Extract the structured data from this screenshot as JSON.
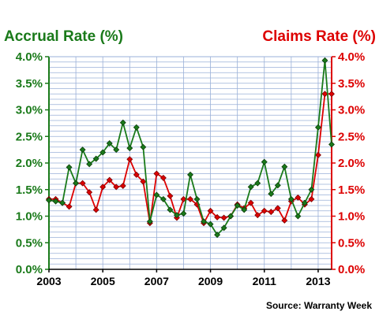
{
  "chart_data": {
    "type": "line",
    "title_left": "Accrual Rate (%)",
    "title_right": "Claims Rate (%)",
    "source": "Source: Warranty Week",
    "colors": {
      "accrual": "#1a7a1a",
      "claims": "#dd0000"
    },
    "y_range": [
      0,
      4.0
    ],
    "y_ticks": [
      0,
      0.5,
      1.0,
      1.5,
      2.0,
      2.5,
      3.0,
      3.5,
      4.0
    ],
    "y_tick_labels": [
      "0.0%",
      "0.5%",
      "1.0%",
      "1.5%",
      "2.0%",
      "2.5%",
      "3.0%",
      "3.5%",
      "4.0%"
    ],
    "x_range": [
      2003,
      2013.5
    ],
    "x_ticks": [
      2003,
      2005,
      2007,
      2009,
      2011,
      2013
    ],
    "x_tick_labels": [
      "2003",
      "2005",
      "2007",
      "2009",
      "2011",
      "2013"
    ],
    "grid": true,
    "series": [
      {
        "name": "Accrual Rate (%)",
        "axis": "left",
        "x": [
          2003.0,
          2003.25,
          2003.5,
          2003.75,
          2004.0,
          2004.25,
          2004.5,
          2004.75,
          2005.0,
          2005.25,
          2005.5,
          2005.75,
          2006.0,
          2006.25,
          2006.5,
          2006.75,
          2007.0,
          2007.25,
          2007.5,
          2007.75,
          2008.0,
          2008.25,
          2008.5,
          2008.75,
          2009.0,
          2009.25,
          2009.5,
          2009.75,
          2010.0,
          2010.25,
          2010.5,
          2010.75,
          2011.0,
          2011.25,
          2011.5,
          2011.75,
          2012.0,
          2012.25,
          2012.5,
          2012.75,
          2013.0,
          2013.25,
          2013.5
        ],
        "values": [
          1.3,
          1.28,
          1.25,
          1.92,
          1.62,
          2.25,
          1.98,
          2.08,
          2.2,
          2.37,
          2.25,
          2.76,
          2.28,
          2.67,
          2.3,
          0.9,
          1.4,
          1.32,
          1.12,
          1.02,
          1.05,
          1.78,
          1.32,
          0.9,
          0.85,
          0.65,
          0.78,
          1.0,
          1.2,
          1.12,
          1.55,
          1.62,
          2.02,
          1.42,
          1.58,
          1.93,
          1.32,
          1.0,
          1.25,
          1.5,
          2.67,
          3.93,
          2.35
        ]
      },
      {
        "name": "Claims Rate (%)",
        "axis": "right",
        "x": [
          2003.0,
          2003.25,
          2003.5,
          2003.75,
          2004.0,
          2004.25,
          2004.5,
          2004.75,
          2005.0,
          2005.25,
          2005.5,
          2005.75,
          2006.0,
          2006.25,
          2006.5,
          2006.75,
          2007.0,
          2007.25,
          2007.5,
          2007.75,
          2008.0,
          2008.25,
          2008.5,
          2008.75,
          2009.0,
          2009.25,
          2009.5,
          2009.75,
          2010.0,
          2010.25,
          2010.5,
          2010.75,
          2011.0,
          2011.25,
          2011.5,
          2011.75,
          2012.0,
          2012.25,
          2012.5,
          2012.75,
          2013.0,
          2013.25,
          2013.5
        ],
        "values": [
          1.32,
          1.32,
          1.25,
          1.18,
          1.62,
          1.62,
          1.45,
          1.12,
          1.55,
          1.68,
          1.55,
          1.57,
          2.07,
          1.78,
          1.65,
          0.87,
          1.8,
          1.72,
          1.38,
          0.97,
          1.32,
          1.32,
          1.22,
          0.87,
          1.1,
          0.98,
          0.97,
          1.0,
          1.22,
          1.15,
          1.25,
          1.02,
          1.1,
          1.08,
          1.15,
          0.92,
          1.28,
          1.35,
          1.22,
          1.32,
          2.15,
          3.3,
          3.3
        ]
      }
    ]
  }
}
